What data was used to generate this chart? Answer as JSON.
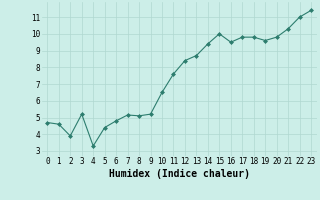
{
  "x": [
    0,
    1,
    2,
    3,
    4,
    5,
    6,
    7,
    8,
    9,
    10,
    11,
    12,
    13,
    14,
    15,
    16,
    17,
    18,
    19,
    20,
    21,
    22,
    23
  ],
  "y": [
    4.7,
    4.6,
    3.9,
    5.2,
    3.3,
    4.4,
    4.8,
    5.15,
    5.1,
    5.2,
    6.5,
    7.6,
    8.4,
    8.7,
    9.4,
    10.0,
    9.5,
    9.8,
    9.8,
    9.6,
    9.8,
    10.3,
    11.0,
    11.4
  ],
  "line_color": "#2d7d6e",
  "marker": "D",
  "marker_size": 2.0,
  "bg_color": "#cceee8",
  "grid_color": "#b0d8d0",
  "xlabel": "Humidex (Indice chaleur)",
  "xlim": [
    -0.5,
    23.5
  ],
  "ylim": [
    2.7,
    11.9
  ],
  "yticks": [
    3,
    4,
    5,
    6,
    7,
    8,
    9,
    10,
    11
  ],
  "xticks": [
    0,
    1,
    2,
    3,
    4,
    5,
    6,
    7,
    8,
    9,
    10,
    11,
    12,
    13,
    14,
    15,
    16,
    17,
    18,
    19,
    20,
    21,
    22,
    23
  ],
  "tick_fontsize": 5.5,
  "xlabel_fontsize": 7,
  "label_font": "monospace"
}
